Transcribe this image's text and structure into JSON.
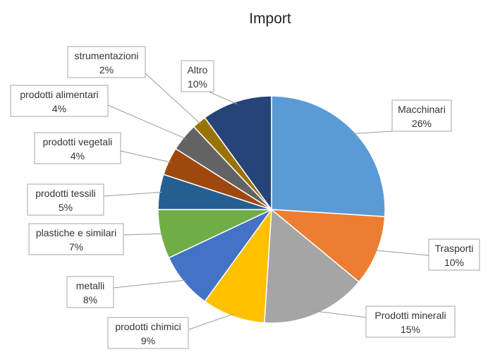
{
  "chart_data": {
    "type": "pie",
    "title": "Import",
    "slices": [
      {
        "label": "Macchinari",
        "value": 26,
        "percent_label": "26%",
        "color": "#5b9bd5"
      },
      {
        "label": "Trasporti",
        "value": 10,
        "percent_label": "10%",
        "color": "#ed7d31"
      },
      {
        "label": "Prodotti minerali",
        "value": 15,
        "percent_label": "15%",
        "color": "#a5a5a5"
      },
      {
        "label": "prodotti chimici",
        "value": 9,
        "percent_label": "9%",
        "color": "#ffc000"
      },
      {
        "label": "metalli",
        "value": 8,
        "percent_label": "8%",
        "color": "#4472c4"
      },
      {
        "label": "plastiche e similari",
        "value": 7,
        "percent_label": "7%",
        "color": "#70ad47"
      },
      {
        "label": "prodotti tessili",
        "value": 5,
        "percent_label": "5%",
        "color": "#255e91"
      },
      {
        "label": "prodotti vegetali",
        "value": 4,
        "percent_label": "4%",
        "color": "#9e480e"
      },
      {
        "label": "prodotti alimentari",
        "value": 4,
        "percent_label": "4%",
        "color": "#636363"
      },
      {
        "label": "strumentazioni",
        "value": 2,
        "percent_label": "2%",
        "color": "#997300"
      },
      {
        "label": "Altro",
        "value": 10,
        "percent_label": "10%",
        "color": "#264478"
      }
    ],
    "legend": "none"
  }
}
